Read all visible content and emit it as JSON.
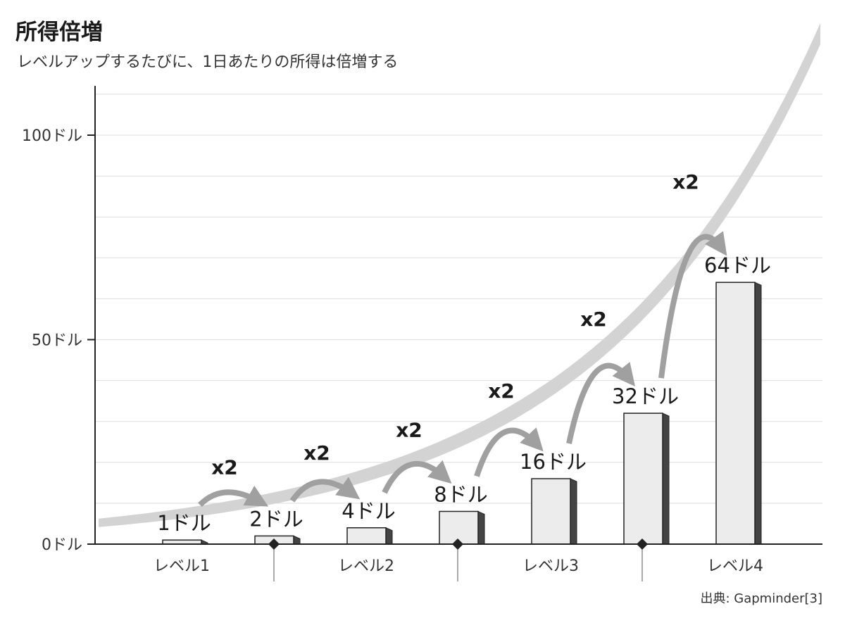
{
  "title": "所得倍増",
  "subtitle": "レベルアップするたびに、1日あたりの所得は倍増する",
  "source": "出典: Gapminder[3]",
  "chart_data": {
    "type": "bar",
    "title": "所得倍増",
    "subtitle": "レベルアップするたびに、1日あたりの所得は倍増する",
    "categories": [
      "1",
      "2",
      "4",
      "8",
      "16",
      "32",
      "64"
    ],
    "values": [
      1,
      2,
      4,
      8,
      16,
      32,
      64
    ],
    "value_labels": [
      "1ドル",
      "2ドル",
      "4ドル",
      "8ドル",
      "16ドル",
      "32ドル",
      "64ドル"
    ],
    "multiplier_label": "x2",
    "group_labels": [
      "レベル1",
      "レベル2",
      "レベル3",
      "レベル4"
    ],
    "yticks": [
      0,
      50,
      100
    ],
    "ytick_labels": [
      "0ドル",
      "50ドル",
      "100ドル"
    ],
    "ylim": [
      0,
      110
    ],
    "grid": true,
    "colors": {
      "bar_face": "#ececec",
      "bar_side": "#444444",
      "curve_band": "#d3d3d3",
      "arrow": "#a0a0a0",
      "grid": "#dddddd"
    }
  }
}
